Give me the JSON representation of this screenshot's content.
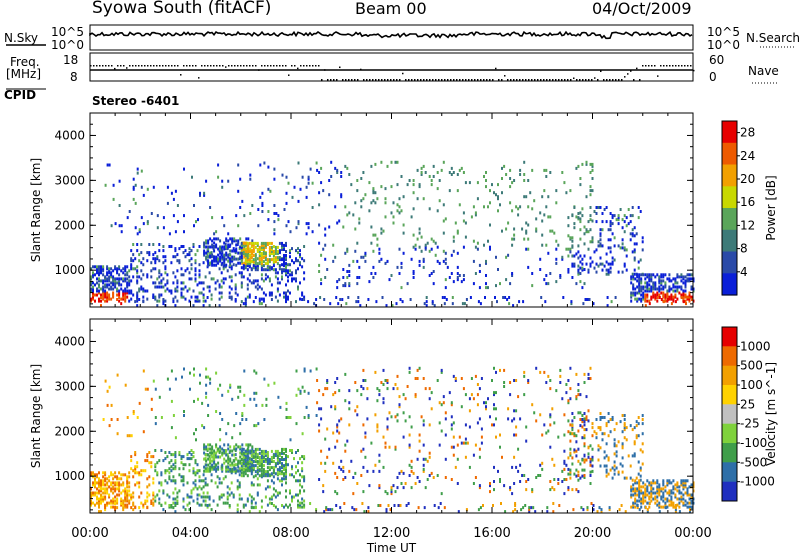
{
  "header": {
    "title": "Syowa South (fitACF)",
    "beam": "Beam 00",
    "date": "04/Oct/2009"
  },
  "top_panels": {
    "nsky_label": "N.Sky",
    "nsky_ticks": [
      "10^5",
      "10^0"
    ],
    "nsearch_label": "N.Search",
    "nsearch_ticks": [
      "10^5",
      "10^0"
    ],
    "freq_label_line1": "Freq.",
    "freq_label_line2": "[MHz]",
    "freq_ticks": [
      "18",
      "8"
    ],
    "nave_label": "Nave",
    "nave_ticks": [
      "60",
      "0"
    ],
    "cpid_label": "CPID",
    "cpid_value": "Stereo -6401"
  },
  "chart_data": [
    {
      "type": "heatmap",
      "ylabel": "Slant Range [km]",
      "xlabel": "",
      "ylim": [
        180,
        4500
      ],
      "yticks": [
        1000,
        2000,
        3000,
        4000
      ],
      "colorbar": {
        "label": "Power [dB]",
        "ticks": [
          "4",
          "8",
          "12",
          "16",
          "20",
          "24",
          "28"
        ],
        "range": [
          0,
          30
        ],
        "colors": [
          "#0a1fd8",
          "#2a4aa8",
          "#3d7a78",
          "#5aa55a",
          "#c8d800",
          "#f2a000",
          "#ee5a00",
          "#e60000"
        ]
      }
    },
    {
      "type": "heatmap",
      "ylabel": "Slant Range [km]",
      "xlabel": "Time UT",
      "ylim": [
        180,
        4500
      ],
      "yticks": [
        1000,
        2000,
        3000,
        4000
      ],
      "xticks": [
        "00:00",
        "04:00",
        "08:00",
        "12:00",
        "16:00",
        "20:00",
        "00:00"
      ],
      "colorbar": {
        "label": "Velocity [m s^-1]",
        "ticks": [
          "1000",
          "500",
          "100",
          "25",
          "-25",
          "-100",
          "-500",
          "-1000"
        ],
        "colors": [
          "#1f2fbf",
          "#2e6fa8",
          "#3f9e4a",
          "#7fd23c",
          "#c0c0c0",
          "#ffd200",
          "#f2a000",
          "#ee6a00",
          "#e60000"
        ]
      }
    }
  ]
}
